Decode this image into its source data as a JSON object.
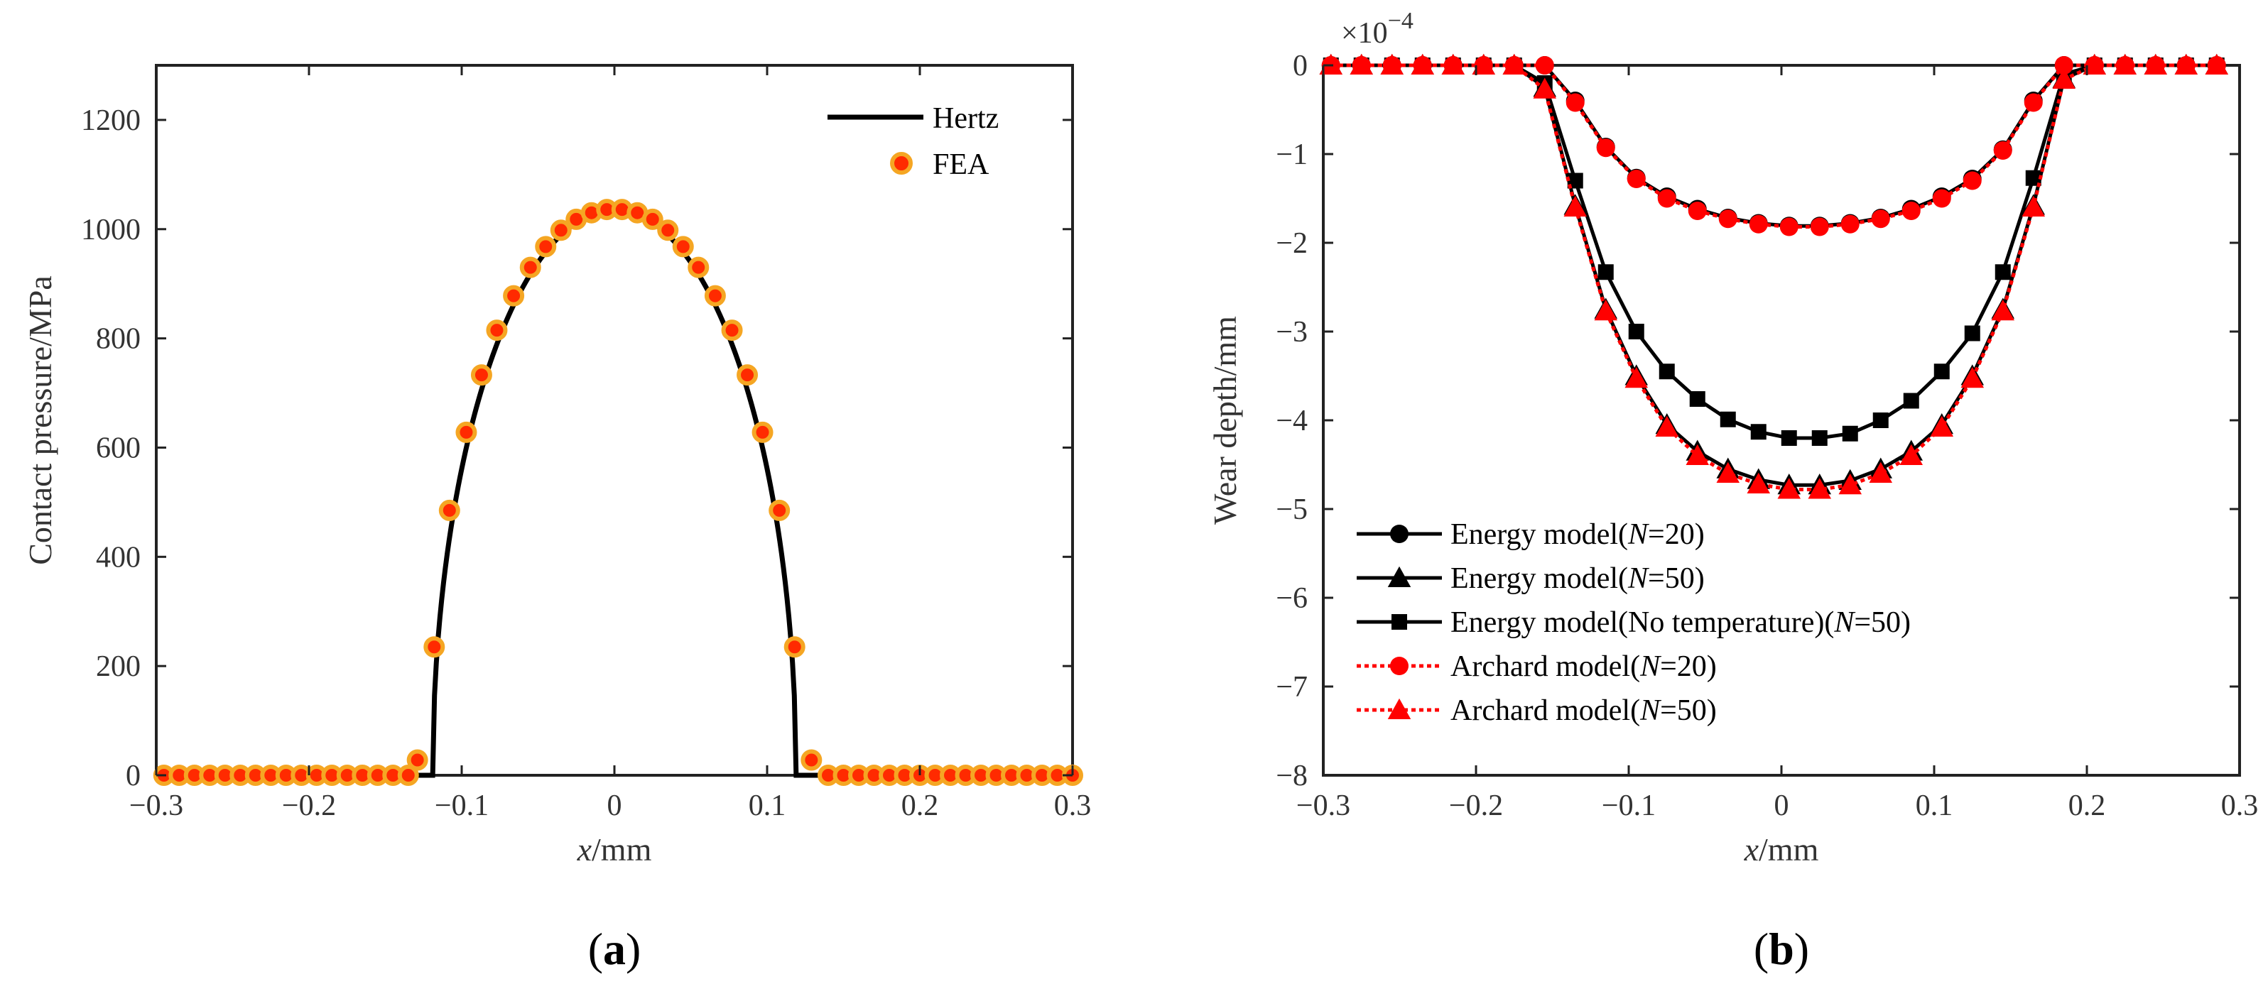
{
  "panel_a_label": "a",
  "panel_b_label": "b",
  "chart_data": [
    {
      "type": "line",
      "panel": "a",
      "ylabel": "Contact pressure/MPa",
      "xlabel_italic": "x",
      "xlabel_rest": "/mm",
      "xlim": [
        -0.3,
        0.3
      ],
      "ylim": [
        0,
        1300
      ],
      "xticks": [
        -0.3,
        -0.2,
        -0.1,
        0,
        0.1,
        0.2,
        0.3
      ],
      "xtick_labels": [
        "−0.3",
        "−0.2",
        "−0.1",
        "0",
        "0.1",
        "0.2",
        "0.3"
      ],
      "yticks": [
        0,
        200,
        400,
        600,
        800,
        1000,
        1200
      ],
      "ytick_labels": [
        "0",
        "200",
        "400",
        "600",
        "800",
        "1000",
        "1200"
      ],
      "legend_position": "top-right",
      "series": [
        {
          "name": "Hertz",
          "style": "line",
          "color": "#000000",
          "hertz_half_width": 0.119,
          "hertz_peak": 1035
        },
        {
          "name": "FEA",
          "style": "markers",
          "marker_fill": "#ff2a00",
          "marker_edge": "#f5a623",
          "points": [
            [
              -0.295,
              0
            ],
            [
              -0.285,
              0
            ],
            [
              -0.275,
              0
            ],
            [
              -0.265,
              0
            ],
            [
              -0.255,
              0
            ],
            [
              -0.245,
              0
            ],
            [
              -0.235,
              0
            ],
            [
              -0.225,
              0
            ],
            [
              -0.215,
              0
            ],
            [
              -0.205,
              0
            ],
            [
              -0.195,
              0
            ],
            [
              -0.185,
              0
            ],
            [
              -0.175,
              0
            ],
            [
              -0.165,
              0
            ],
            [
              -0.155,
              0
            ],
            [
              -0.145,
              0
            ],
            [
              -0.135,
              0
            ],
            [
              -0.129,
              28
            ],
            [
              -0.118,
              235
            ],
            [
              -0.108,
              485
            ],
            [
              -0.097,
              628
            ],
            [
              -0.087,
              733
            ],
            [
              -0.077,
              815
            ],
            [
              -0.066,
              878
            ],
            [
              -0.055,
              930
            ],
            [
              -0.045,
              968
            ],
            [
              -0.035,
              998
            ],
            [
              -0.025,
              1018
            ],
            [
              -0.015,
              1030
            ],
            [
              -0.005,
              1036
            ],
            [
              0.005,
              1036
            ],
            [
              0.015,
              1030
            ],
            [
              0.025,
              1018
            ],
            [
              0.035,
              998
            ],
            [
              0.045,
              968
            ],
            [
              0.055,
              930
            ],
            [
              0.066,
              878
            ],
            [
              0.077,
              815
            ],
            [
              0.087,
              733
            ],
            [
              0.097,
              628
            ],
            [
              0.108,
              485
            ],
            [
              0.118,
              235
            ],
            [
              0.129,
              28
            ],
            [
              0.14,
              0
            ],
            [
              0.15,
              0
            ],
            [
              0.16,
              0
            ],
            [
              0.17,
              0
            ],
            [
              0.18,
              0
            ],
            [
              0.19,
              0
            ],
            [
              0.2,
              0
            ],
            [
              0.21,
              0
            ],
            [
              0.22,
              0
            ],
            [
              0.23,
              0
            ],
            [
              0.24,
              0
            ],
            [
              0.25,
              0
            ],
            [
              0.26,
              0
            ],
            [
              0.27,
              0
            ],
            [
              0.28,
              0
            ],
            [
              0.29,
              0
            ],
            [
              0.3,
              0
            ]
          ]
        }
      ]
    },
    {
      "type": "line",
      "panel": "b",
      "ylabel": "Wear depth/mm",
      "xlabel_italic": "x",
      "xlabel_rest": "/mm",
      "exponent_base": "×10",
      "exponent_power": "−4",
      "xlim": [
        -0.3,
        0.3
      ],
      "ylim": [
        -8,
        0
      ],
      "xticks": [
        -0.3,
        -0.2,
        -0.1,
        0,
        0.1,
        0.2,
        0.3
      ],
      "xtick_labels": [
        "−0.3",
        "−0.2",
        "−0.1",
        "0",
        "0.1",
        "0.2",
        "0.3"
      ],
      "yticks": [
        0,
        -1,
        -2,
        -3,
        -4,
        -5,
        -6,
        -7,
        -8
      ],
      "ytick_labels": [
        "0",
        "−1",
        "−2",
        "−3",
        "−4",
        "−5",
        "−6",
        "−7",
        "−8"
      ],
      "legend_position": "bottom-left",
      "x": [
        -0.295,
        -0.275,
        -0.255,
        -0.235,
        -0.215,
        -0.195,
        -0.175,
        -0.155,
        -0.135,
        -0.115,
        -0.095,
        -0.075,
        -0.055,
        -0.035,
        -0.015,
        0.005,
        0.025,
        0.045,
        0.065,
        0.085,
        0.105,
        0.125,
        0.145,
        0.165,
        0.185,
        0.205,
        0.225,
        0.245,
        0.265,
        0.285
      ],
      "series": [
        {
          "name_pre": "Energy model(",
          "name_italic": "N",
          "name_post": "=20)",
          "color": "#000000",
          "dash": "",
          "marker": "circle",
          "values": [
            0,
            0,
            0,
            0,
            0,
            0,
            0,
            0,
            -0.4,
            -0.92,
            -1.27,
            -1.48,
            -1.62,
            -1.72,
            -1.78,
            -1.81,
            -1.81,
            -1.78,
            -1.72,
            -1.62,
            -1.48,
            -1.28,
            -0.95,
            -0.4,
            0,
            0,
            0,
            0,
            0,
            0
          ]
        },
        {
          "name_pre": "Energy model(",
          "name_italic": "N",
          "name_post": "=50)",
          "color": "#000000",
          "dash": "",
          "marker": "triangle",
          "values": [
            0,
            0,
            0,
            0,
            0,
            0,
            0,
            -0.25,
            -1.58,
            -2.75,
            -3.5,
            -4.05,
            -4.35,
            -4.55,
            -4.67,
            -4.73,
            -4.73,
            -4.68,
            -4.55,
            -4.35,
            -4.05,
            -3.5,
            -2.75,
            -1.58,
            -0.15,
            0,
            0,
            0,
            0,
            0
          ]
        },
        {
          "name_pre": "Energy model(No temperature)(",
          "name_italic": "N",
          "name_post": "=50)",
          "color": "#000000",
          "dash": "",
          "marker": "square",
          "values": [
            0,
            0,
            0,
            0,
            0,
            0,
            0,
            -0.2,
            -1.3,
            -2.33,
            -3.0,
            -3.45,
            -3.76,
            -3.99,
            -4.13,
            -4.2,
            -4.2,
            -4.15,
            -4.0,
            -3.78,
            -3.45,
            -3.02,
            -2.33,
            -1.27,
            -0.1,
            0,
            0,
            0,
            0,
            0
          ]
        },
        {
          "name_pre": "Archard model(",
          "name_italic": "N",
          "name_post": "=20)",
          "color": "#ff0000",
          "dash": "6,5",
          "marker": "circle",
          "values": [
            0,
            0,
            0,
            0,
            0,
            0,
            0,
            0,
            -0.42,
            -0.93,
            -1.28,
            -1.5,
            -1.64,
            -1.73,
            -1.79,
            -1.82,
            -1.82,
            -1.79,
            -1.73,
            -1.64,
            -1.5,
            -1.3,
            -0.96,
            -0.42,
            0,
            0,
            0,
            0,
            0,
            0
          ]
        },
        {
          "name_pre": "Archard model(",
          "name_italic": "N",
          "name_post": "=50)",
          "color": "#ff0000",
          "dash": "6,5",
          "marker": "triangle",
          "values": [
            0,
            0,
            0,
            0,
            0,
            0,
            0,
            -0.27,
            -1.6,
            -2.77,
            -3.53,
            -4.08,
            -4.4,
            -4.6,
            -4.72,
            -4.78,
            -4.78,
            -4.73,
            -4.6,
            -4.4,
            -4.08,
            -3.53,
            -2.77,
            -1.6,
            -0.16,
            0,
            0,
            0,
            0,
            0
          ]
        }
      ]
    }
  ]
}
